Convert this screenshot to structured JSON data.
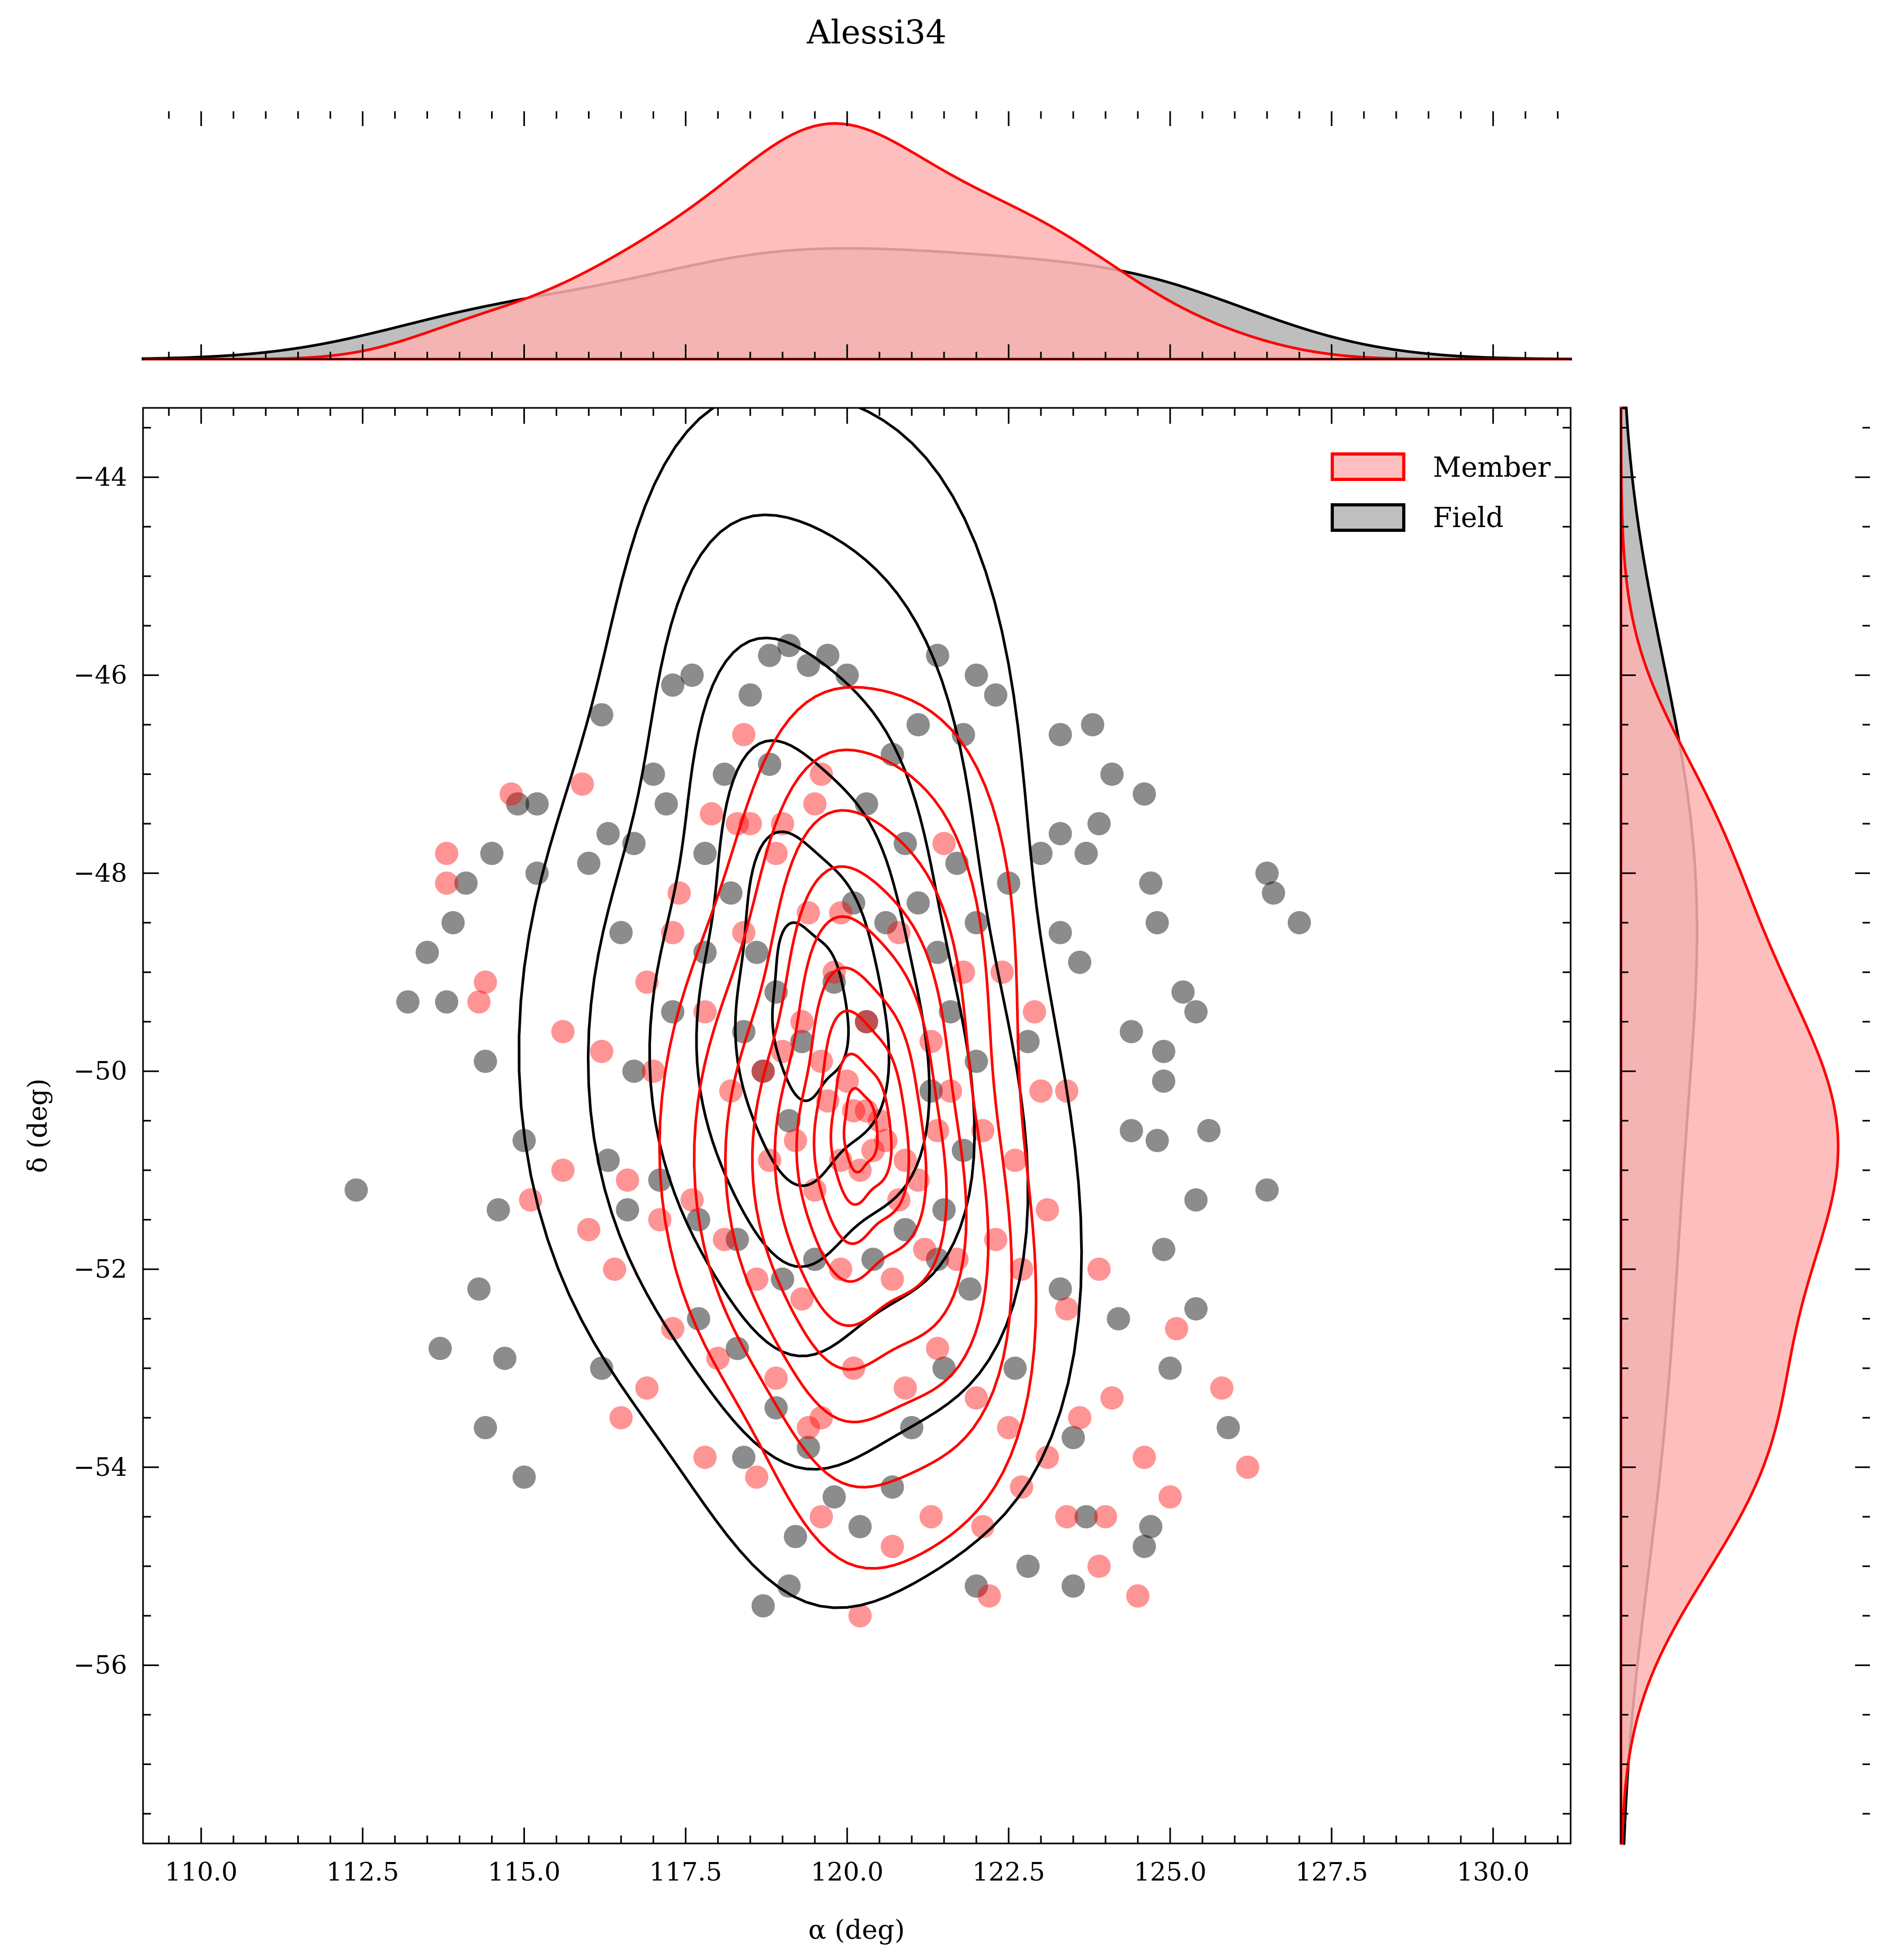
{
  "chart_data": {
    "type": "scatter",
    "title": "Alessi34",
    "xlabel": "α (deg)",
    "ylabel": "δ (deg)",
    "xlim": [
      109.1,
      131.2
    ],
    "ylim": [
      -57.8,
      -43.3
    ],
    "x_ticks": [
      "110.0",
      "112.5",
      "115.0",
      "117.5",
      "120.0",
      "122.5",
      "125.0",
      "127.5",
      "130.0"
    ],
    "y_ticks": [
      "−44",
      "−46",
      "−48",
      "−50",
      "−52",
      "−54",
      "−56"
    ],
    "grid": false,
    "legend": {
      "placement": "upper right",
      "entries": [
        "Member",
        "Field"
      ]
    },
    "marginals": [
      "top: α KDE",
      "right: δ KDE"
    ],
    "colors": {
      "member": "#ff0000",
      "field": "#000000",
      "member_fill": "#ffb3b3",
      "field_fill": "#b3b3b3"
    },
    "series": [
      {
        "name": "Member",
        "center": [
          120.2,
          -50.6
        ],
        "spread": [
          1.9,
          1.6
        ],
        "tilt_deg": -30,
        "points": [
          [
            118.5,
            -47.5
          ],
          [
            117.9,
            -47.4
          ],
          [
            118.3,
            -47.5
          ],
          [
            119.0,
            -47.5
          ],
          [
            119.5,
            -47.3
          ],
          [
            121.5,
            -47.7
          ],
          [
            118.4,
            -46.6
          ],
          [
            115.9,
            -47.1
          ],
          [
            114.8,
            -47.2
          ],
          [
            113.8,
            -47.8
          ],
          [
            114.4,
            -49.1
          ],
          [
            113.8,
            -48.1
          ],
          [
            117.3,
            -48.6
          ],
          [
            118.4,
            -48.6
          ],
          [
            119.4,
            -48.4
          ],
          [
            119.8,
            -49.0
          ],
          [
            120.3,
            -49.5
          ],
          [
            119.9,
            -48.4
          ],
          [
            120.8,
            -48.6
          ],
          [
            121.3,
            -49.7
          ],
          [
            122.4,
            -49.0
          ],
          [
            116.9,
            -49.1
          ],
          [
            117.8,
            -49.4
          ],
          [
            116.2,
            -49.8
          ],
          [
            115.6,
            -49.6
          ],
          [
            117.0,
            -50.0
          ],
          [
            118.2,
            -50.2
          ],
          [
            118.7,
            -50.0
          ],
          [
            119.0,
            -49.8
          ],
          [
            119.3,
            -49.5
          ],
          [
            119.6,
            -49.9
          ],
          [
            119.7,
            -50.3
          ],
          [
            120.0,
            -50.1
          ],
          [
            120.1,
            -50.4
          ],
          [
            120.3,
            -50.4
          ],
          [
            120.5,
            -50.5
          ],
          [
            120.6,
            -50.7
          ],
          [
            120.4,
            -50.8
          ],
          [
            120.9,
            -50.9
          ],
          [
            121.1,
            -51.1
          ],
          [
            120.8,
            -51.3
          ],
          [
            120.2,
            -51.0
          ],
          [
            119.9,
            -50.9
          ],
          [
            119.5,
            -51.2
          ],
          [
            119.2,
            -50.7
          ],
          [
            118.8,
            -50.9
          ],
          [
            121.4,
            -50.6
          ],
          [
            121.6,
            -50.2
          ],
          [
            122.1,
            -50.6
          ],
          [
            122.6,
            -50.9
          ],
          [
            123.1,
            -51.4
          ],
          [
            123.0,
            -50.2
          ],
          [
            122.3,
            -51.7
          ],
          [
            121.7,
            -51.9
          ],
          [
            121.2,
            -51.8
          ],
          [
            120.7,
            -52.1
          ],
          [
            119.9,
            -52.0
          ],
          [
            119.3,
            -52.3
          ],
          [
            118.6,
            -52.1
          ],
          [
            118.1,
            -51.7
          ],
          [
            117.6,
            -51.3
          ],
          [
            117.1,
            -51.5
          ],
          [
            116.6,
            -51.1
          ],
          [
            116.0,
            -51.6
          ],
          [
            115.6,
            -51.0
          ],
          [
            115.1,
            -51.3
          ],
          [
            116.4,
            -52.0
          ],
          [
            117.3,
            -52.6
          ],
          [
            118.0,
            -52.9
          ],
          [
            118.9,
            -53.1
          ],
          [
            119.6,
            -53.5
          ],
          [
            120.1,
            -53.0
          ],
          [
            120.9,
            -53.2
          ],
          [
            121.4,
            -52.8
          ],
          [
            122.0,
            -53.3
          ],
          [
            122.5,
            -53.6
          ],
          [
            123.1,
            -53.9
          ],
          [
            123.6,
            -53.5
          ],
          [
            124.1,
            -53.3
          ],
          [
            124.6,
            -53.9
          ],
          [
            125.0,
            -54.3
          ],
          [
            124.0,
            -54.5
          ],
          [
            123.4,
            -54.5
          ],
          [
            122.7,
            -54.2
          ],
          [
            122.1,
            -54.6
          ],
          [
            121.3,
            -54.5
          ],
          [
            120.7,
            -54.8
          ],
          [
            120.2,
            -55.5
          ],
          [
            119.6,
            -54.5
          ],
          [
            117.8,
            -53.9
          ],
          [
            116.5,
            -53.5
          ],
          [
            116.9,
            -53.2
          ],
          [
            118.6,
            -54.1
          ],
          [
            123.9,
            -55.0
          ],
          [
            124.5,
            -55.3
          ],
          [
            122.2,
            -55.3
          ],
          [
            125.8,
            -53.2
          ],
          [
            126.2,
            -54.0
          ],
          [
            125.1,
            -52.6
          ],
          [
            123.9,
            -52.0
          ],
          [
            123.4,
            -52.4
          ],
          [
            122.7,
            -52.0
          ],
          [
            119.4,
            -53.6
          ],
          [
            121.8,
            -49.0
          ],
          [
            123.4,
            -50.2
          ],
          [
            122.9,
            -49.4
          ],
          [
            117.4,
            -48.2
          ],
          [
            118.9,
            -47.8
          ],
          [
            119.6,
            -47.0
          ],
          [
            114.3,
            -49.3
          ]
        ]
      },
      {
        "name": "Field",
        "center": [
          119.4,
          -49.4
        ],
        "spread": [
          3.1,
          2.4
        ],
        "tilt_deg": -25,
        "points": [
          [
            118.8,
            -45.8
          ],
          [
            119.1,
            -45.7
          ],
          [
            119.4,
            -45.9
          ],
          [
            118.5,
            -46.2
          ],
          [
            117.3,
            -46.1
          ],
          [
            116.2,
            -46.4
          ],
          [
            117.6,
            -46.0
          ],
          [
            119.7,
            -45.8
          ],
          [
            120.0,
            -46.0
          ],
          [
            121.4,
            -45.8
          ],
          [
            122.0,
            -46.0
          ],
          [
            122.3,
            -46.2
          ],
          [
            121.1,
            -46.5
          ],
          [
            120.7,
            -46.8
          ],
          [
            121.8,
            -46.6
          ],
          [
            123.3,
            -46.6
          ],
          [
            123.8,
            -46.5
          ],
          [
            124.1,
            -47.0
          ],
          [
            124.6,
            -47.2
          ],
          [
            123.9,
            -47.5
          ],
          [
            123.3,
            -47.6
          ],
          [
            123.0,
            -47.8
          ],
          [
            122.5,
            -48.1
          ],
          [
            123.7,
            -47.8
          ],
          [
            124.7,
            -48.1
          ],
          [
            124.8,
            -48.5
          ],
          [
            123.3,
            -48.6
          ],
          [
            123.6,
            -48.9
          ],
          [
            122.8,
            -49.7
          ],
          [
            124.4,
            -49.6
          ],
          [
            125.2,
            -49.2
          ],
          [
            125.4,
            -49.4
          ],
          [
            124.9,
            -49.8
          ],
          [
            124.9,
            -50.1
          ],
          [
            124.4,
            -50.6
          ],
          [
            124.8,
            -50.7
          ],
          [
            125.6,
            -50.6
          ],
          [
            126.5,
            -48.0
          ],
          [
            126.6,
            -48.2
          ],
          [
            127.0,
            -48.5
          ],
          [
            126.5,
            -51.2
          ],
          [
            125.4,
            -51.3
          ],
          [
            125.4,
            -52.4
          ],
          [
            125.0,
            -53.0
          ],
          [
            125.9,
            -53.6
          ],
          [
            124.7,
            -54.6
          ],
          [
            123.5,
            -55.2
          ],
          [
            122.8,
            -55.0
          ],
          [
            122.0,
            -55.2
          ],
          [
            119.2,
            -54.7
          ],
          [
            119.1,
            -55.2
          ],
          [
            118.7,
            -55.4
          ],
          [
            118.4,
            -53.9
          ],
          [
            115.0,
            -54.1
          ],
          [
            114.4,
            -53.6
          ],
          [
            113.7,
            -52.8
          ],
          [
            114.7,
            -52.9
          ],
          [
            114.3,
            -52.2
          ],
          [
            114.6,
            -51.4
          ],
          [
            112.4,
            -51.2
          ],
          [
            115.0,
            -50.7
          ],
          [
            114.4,
            -49.9
          ],
          [
            113.8,
            -49.3
          ],
          [
            113.2,
            -49.3
          ],
          [
            113.5,
            -48.8
          ],
          [
            113.9,
            -48.5
          ],
          [
            114.1,
            -48.1
          ],
          [
            114.5,
            -47.8
          ],
          [
            114.9,
            -47.3
          ],
          [
            115.2,
            -47.3
          ],
          [
            115.2,
            -48.0
          ],
          [
            116.0,
            -47.9
          ],
          [
            116.7,
            -47.7
          ],
          [
            117.2,
            -47.3
          ],
          [
            117.8,
            -47.8
          ],
          [
            118.2,
            -48.2
          ],
          [
            118.6,
            -48.8
          ],
          [
            118.9,
            -49.2
          ],
          [
            118.4,
            -49.6
          ],
          [
            118.7,
            -50.0
          ],
          [
            119.1,
            -50.5
          ],
          [
            119.3,
            -49.7
          ],
          [
            119.8,
            -49.1
          ],
          [
            120.3,
            -49.5
          ],
          [
            120.1,
            -48.3
          ],
          [
            120.6,
            -48.5
          ],
          [
            121.1,
            -48.3
          ],
          [
            121.4,
            -48.8
          ],
          [
            121.6,
            -49.4
          ],
          [
            122.0,
            -49.9
          ],
          [
            121.3,
            -50.2
          ],
          [
            121.8,
            -50.8
          ],
          [
            121.5,
            -51.4
          ],
          [
            120.9,
            -51.6
          ],
          [
            120.4,
            -51.9
          ],
          [
            119.5,
            -51.9
          ],
          [
            119.0,
            -52.1
          ],
          [
            118.3,
            -51.7
          ],
          [
            117.7,
            -51.5
          ],
          [
            117.1,
            -51.1
          ],
          [
            116.6,
            -51.4
          ],
          [
            116.3,
            -50.9
          ],
          [
            116.7,
            -50.0
          ],
          [
            117.3,
            -49.4
          ],
          [
            117.8,
            -48.8
          ],
          [
            116.5,
            -48.6
          ],
          [
            116.3,
            -47.6
          ],
          [
            117.0,
            -47.0
          ],
          [
            118.1,
            -47.0
          ],
          [
            118.8,
            -46.9
          ],
          [
            120.3,
            -47.3
          ],
          [
            120.9,
            -47.7
          ],
          [
            121.7,
            -47.9
          ],
          [
            122.0,
            -48.5
          ],
          [
            121.4,
            -51.9
          ],
          [
            121.9,
            -52.2
          ],
          [
            121.5,
            -53.0
          ],
          [
            121.0,
            -53.6
          ],
          [
            120.7,
            -54.2
          ],
          [
            120.2,
            -54.6
          ],
          [
            119.8,
            -54.3
          ],
          [
            119.4,
            -53.8
          ],
          [
            118.9,
            -53.4
          ],
          [
            118.3,
            -52.8
          ],
          [
            117.7,
            -52.5
          ],
          [
            116.2,
            -53.0
          ],
          [
            123.5,
            -53.7
          ],
          [
            123.7,
            -54.5
          ],
          [
            124.6,
            -54.8
          ],
          [
            122.6,
            -53.0
          ],
          [
            123.3,
            -52.2
          ],
          [
            124.2,
            -52.5
          ],
          [
            124.9,
            -51.8
          ]
        ]
      }
    ]
  },
  "legend": {
    "member": "Member",
    "field": "Field"
  }
}
